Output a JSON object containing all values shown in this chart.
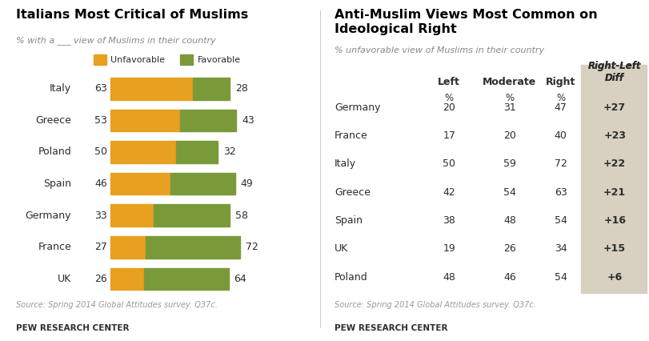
{
  "left_title": "Italians Most Critical of Muslims",
  "left_subtitle": "% with a ___ view of Muslims in their country",
  "left_countries": [
    "Italy",
    "Greece",
    "Poland",
    "Spain",
    "Germany",
    "France",
    "UK"
  ],
  "unfavorable": [
    63,
    53,
    50,
    46,
    33,
    27,
    26
  ],
  "favorable": [
    28,
    43,
    32,
    49,
    58,
    72,
    64
  ],
  "unfavorable_color": "#E8A020",
  "favorable_color": "#7A9A3A",
  "right_title": "Anti-Muslim Views Most Common on\nIdeological Right",
  "right_subtitle": "% unfavorable view of Muslims in their country",
  "right_countries": [
    "Germany",
    "France",
    "Italy",
    "Greece",
    "Spain",
    "UK",
    "Poland"
  ],
  "left_pct": [
    20,
    17,
    50,
    42,
    38,
    19,
    48
  ],
  "moderate_pct": [
    31,
    20,
    59,
    54,
    48,
    26,
    46
  ],
  "right_pct": [
    47,
    40,
    72,
    63,
    54,
    34,
    54
  ],
  "diff": [
    "+27",
    "+23",
    "+22",
    "+21",
    "+16",
    "+15",
    "+6"
  ],
  "diff_bg": "#D8D0C0",
  "source_text": "Source: Spring 2014 Global Attitudes survey. Q37c.",
  "pew_text": "PEW RESEARCH CENTER",
  "bg_color": "#FFFFFF",
  "text_color": "#2C2C2C",
  "source_color": "#999999",
  "title_color": "#000000",
  "subtitle_color": "#888888"
}
